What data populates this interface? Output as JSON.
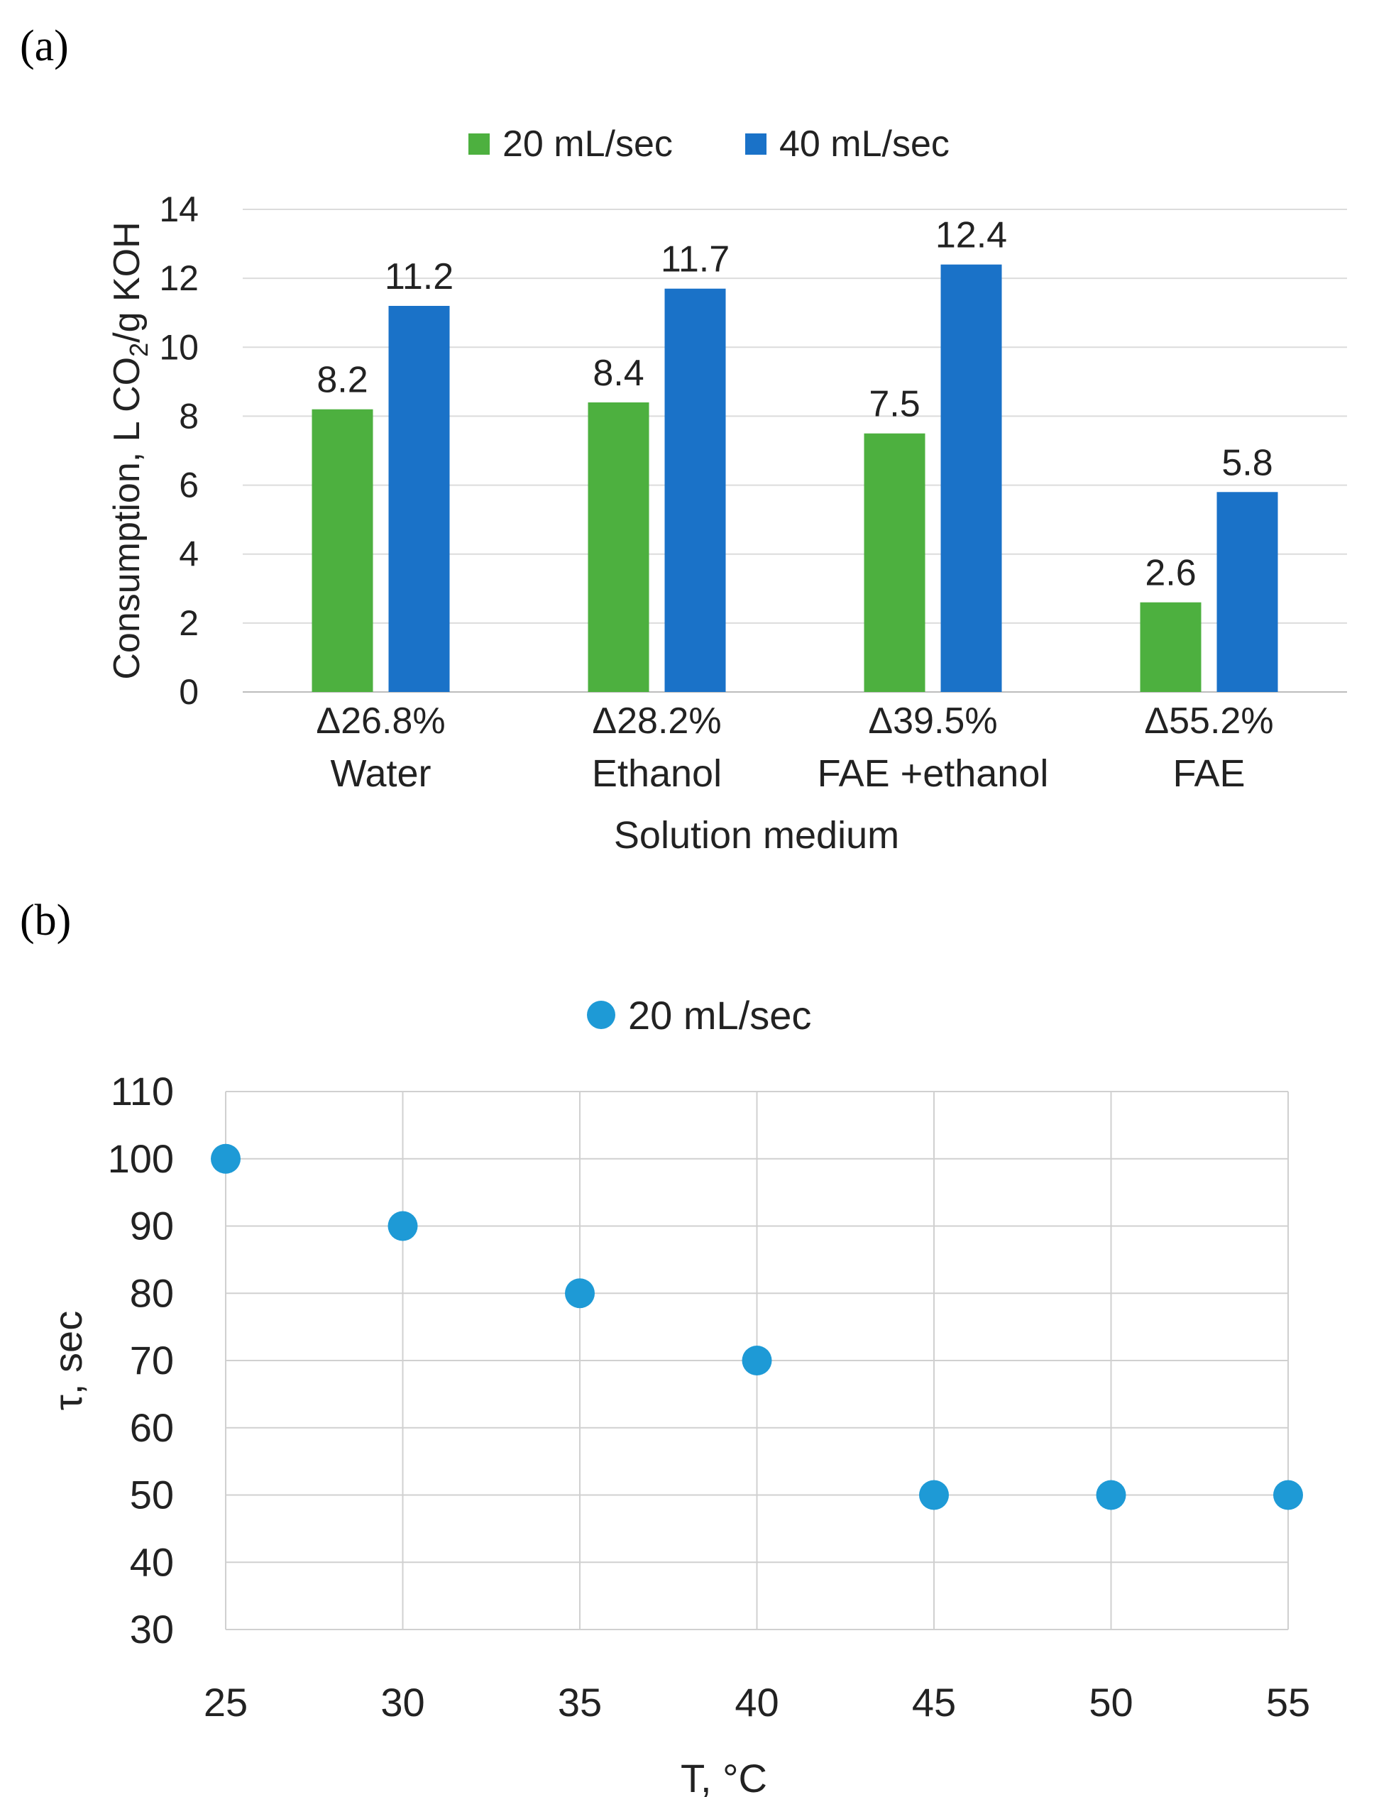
{
  "panel_a_label": "(a)",
  "panel_b_label": "(b)",
  "chart_data": [
    {
      "type": "bar",
      "title": "",
      "xlabel": "Solution medium",
      "ylabel_parts": [
        "Consumption, L CO",
        "2",
        "/g KOH"
      ],
      "ylim": [
        0,
        14
      ],
      "yticks": [
        0,
        2,
        4,
        6,
        8,
        10,
        12,
        14
      ],
      "grid": true,
      "legend_position": "top",
      "categories": [
        "Water",
        "Ethanol",
        "FAE +ethanol",
        "FAE"
      ],
      "category_deltas": [
        "Δ26.8%",
        "Δ28.2%",
        "Δ39.5%",
        "Δ55.2%"
      ],
      "series": [
        {
          "name": "20 mL/sec",
          "color": "#4db03f",
          "values": [
            8.2,
            8.4,
            7.5,
            2.6
          ]
        },
        {
          "name": "40 mL/sec",
          "color": "#1a72c8",
          "values": [
            11.2,
            11.7,
            12.4,
            5.8
          ]
        }
      ]
    },
    {
      "type": "scatter",
      "title": "",
      "xlabel": "T, °C",
      "ylabel": "τ, sec",
      "xlim": [
        25,
        55
      ],
      "ylim": [
        30,
        110
      ],
      "xticks": [
        25,
        30,
        35,
        40,
        45,
        50,
        55
      ],
      "yticks": [
        30,
        40,
        50,
        60,
        70,
        80,
        90,
        100,
        110
      ],
      "grid": true,
      "legend_position": "top",
      "series": [
        {
          "name": "20 mL/sec",
          "color": "#1e9ad6",
          "x": [
            25,
            30,
            35,
            40,
            45,
            50,
            55
          ],
          "y": [
            100,
            90,
            80,
            70,
            50,
            50,
            50
          ]
        }
      ]
    }
  ]
}
